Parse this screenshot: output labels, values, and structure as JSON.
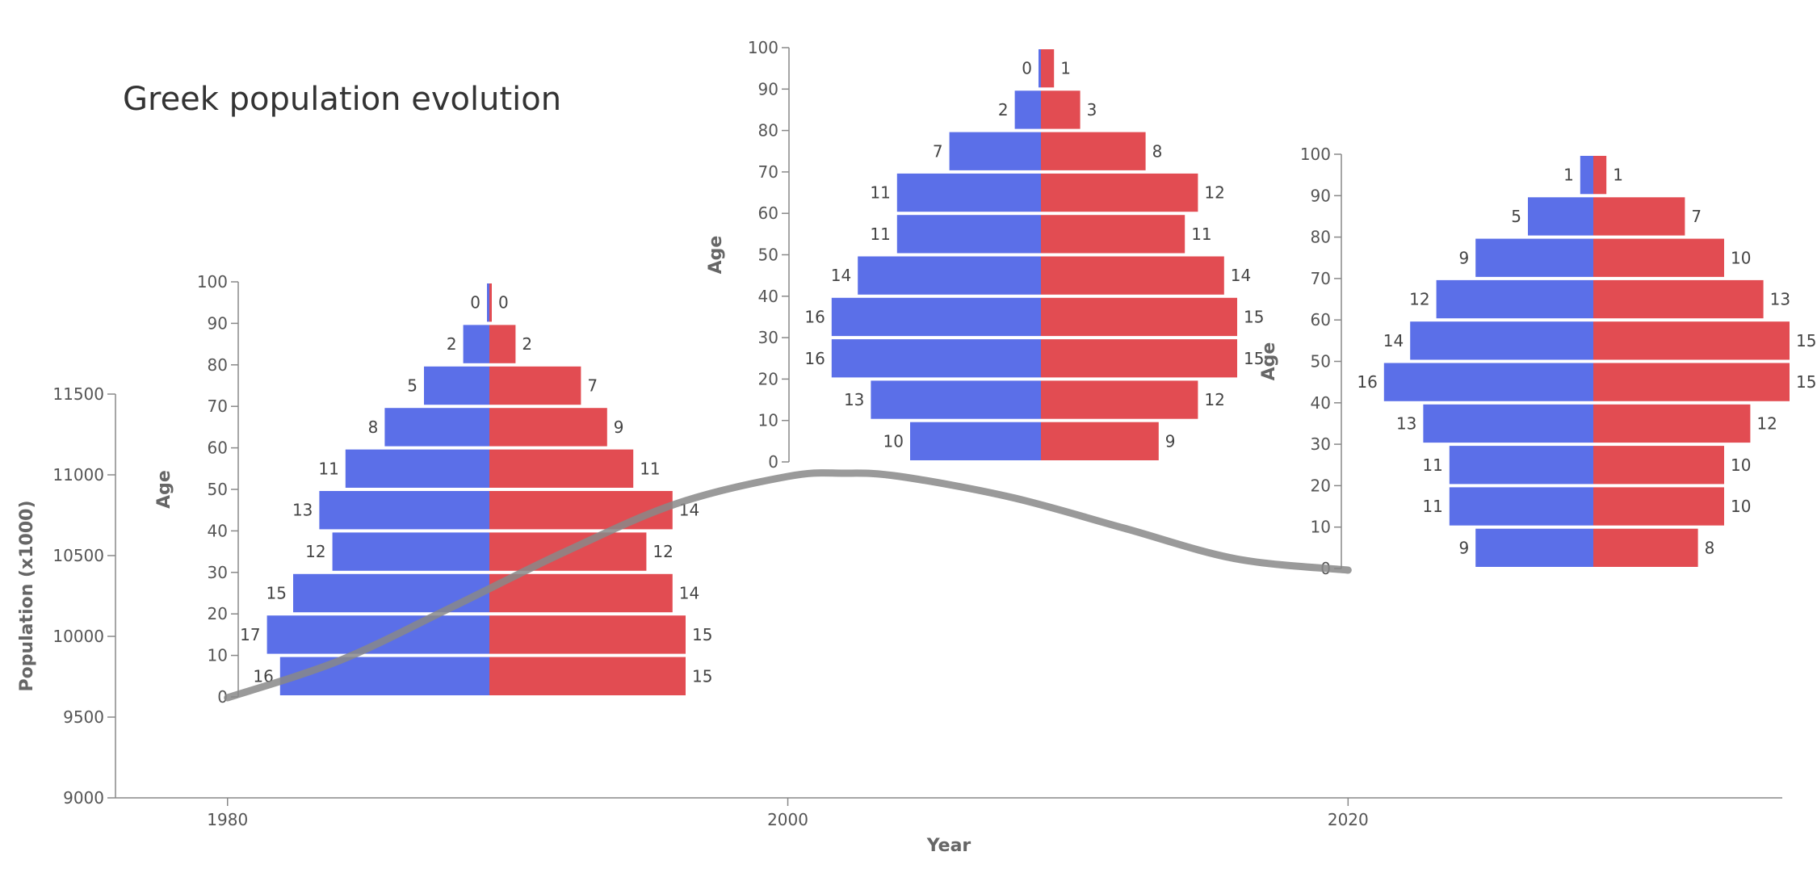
{
  "chart_data": {
    "title": "Greek population evolution",
    "main": {
      "type": "line",
      "xlabel": "Year",
      "ylabel": "Population (x1000)",
      "xlim": [
        1976,
        2035.5
      ],
      "ylim": [
        9000,
        11500
      ],
      "x_ticks": [
        1980,
        2000,
        2020
      ],
      "y_ticks": [
        9000,
        9500,
        10000,
        10500,
        11000,
        11500
      ],
      "series": [
        {
          "color": "#888888",
          "x": [
            1980,
            1984,
            1988,
            1992,
            1996,
            2000,
            2002,
            2004,
            2008,
            2012,
            2016,
            2020
          ],
          "y": [
            9620,
            9850,
            10180,
            10520,
            10820,
            10990,
            11010,
            10990,
            10860,
            10670,
            10480,
            10410
          ]
        }
      ]
    },
    "pyramids": [
      {
        "type": "bar",
        "year": 1980,
        "ylabel": "Age",
        "age_bins": [
          0,
          10,
          20,
          30,
          40,
          50,
          60,
          70,
          80,
          90
        ],
        "age_ticks": [
          0,
          10,
          20,
          30,
          40,
          50,
          60,
          70,
          80,
          90,
          100
        ],
        "male": [
          16,
          17,
          15,
          12,
          13,
          11,
          8,
          5,
          2,
          0
        ],
        "female": [
          15,
          15,
          14,
          12,
          14,
          11,
          9,
          7,
          2,
          0
        ]
      },
      {
        "type": "bar",
        "year": 2000,
        "ylabel": "Age",
        "age_bins": [
          0,
          10,
          20,
          30,
          40,
          50,
          60,
          70,
          80,
          90
        ],
        "age_ticks": [
          0,
          10,
          20,
          30,
          40,
          50,
          60,
          70,
          80,
          90,
          100
        ],
        "male": [
          10,
          13,
          16,
          16,
          14,
          11,
          11,
          7,
          2,
          0
        ],
        "female": [
          9,
          12,
          15,
          15,
          14,
          11,
          12,
          8,
          3,
          1
        ]
      },
      {
        "type": "bar",
        "year": 2020,
        "ylabel": "Age",
        "age_bins": [
          0,
          10,
          20,
          30,
          40,
          50,
          60,
          70,
          80,
          90
        ],
        "age_ticks": [
          0,
          10,
          20,
          30,
          40,
          50,
          60,
          70,
          80,
          90,
          100
        ],
        "male": [
          9,
          11,
          11,
          13,
          16,
          14,
          12,
          9,
          5,
          1
        ],
        "female": [
          8,
          10,
          10,
          12,
          15,
          15,
          13,
          10,
          7,
          1
        ]
      }
    ],
    "colors": {
      "male": "#5b6fe8",
      "female": "#e24c52",
      "line": "#888888",
      "axis": "#888888"
    }
  }
}
